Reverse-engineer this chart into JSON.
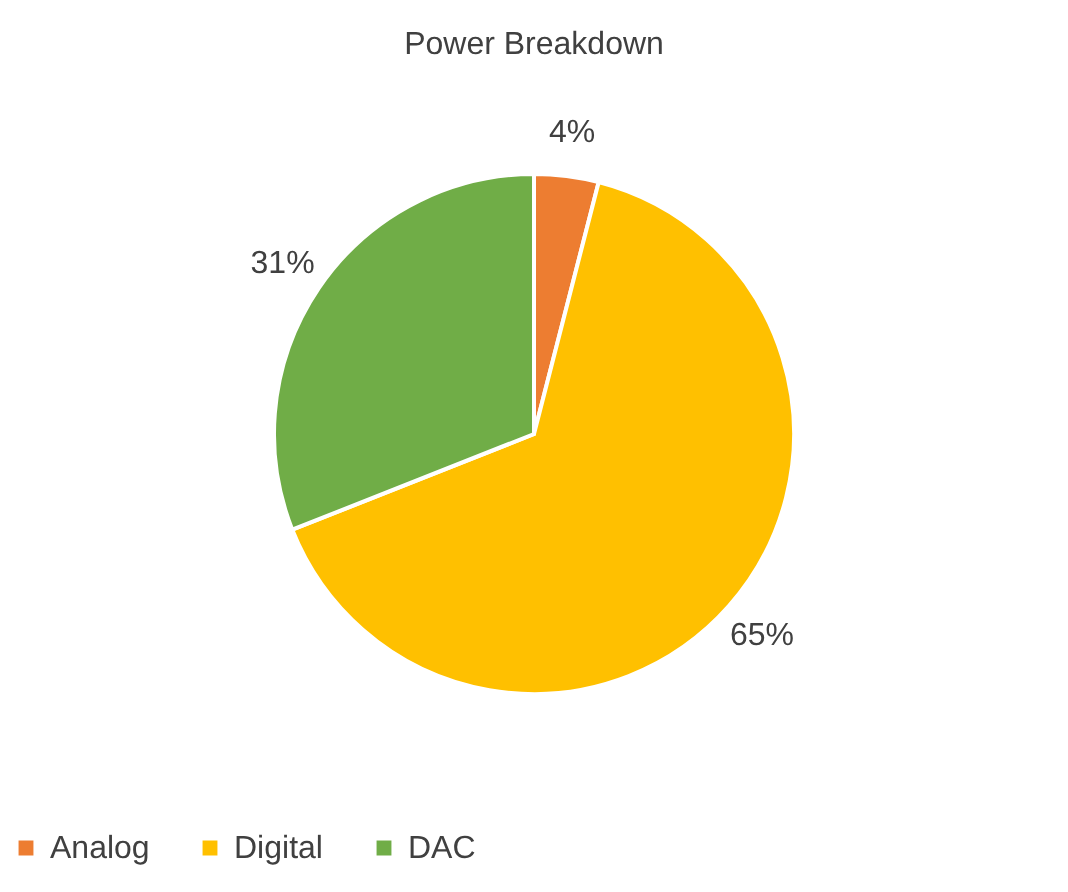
{
  "chart_data": {
    "type": "pie",
    "title": "Power Breakdown",
    "categories": [
      "Analog",
      "Digital",
      "DAC"
    ],
    "values": [
      4,
      65,
      31
    ],
    "colors": [
      "#ed7d31",
      "#ffc000",
      "#70ad47"
    ],
    "value_labels": [
      "4%",
      "65%",
      "31%"
    ],
    "legend": "bottom"
  }
}
